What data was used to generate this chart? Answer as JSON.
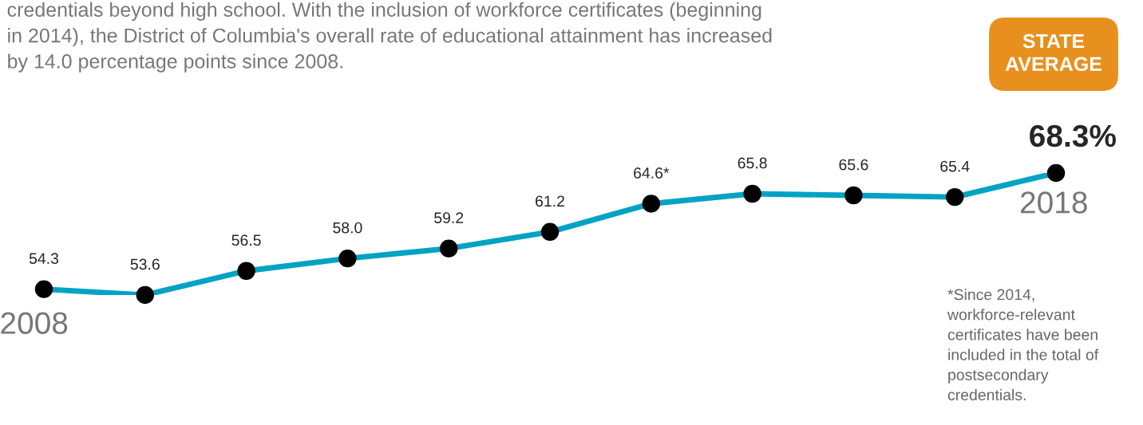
{
  "chart_data": {
    "type": "line",
    "subtitle": "credentials beyond high school. With the inclusion of workforce certificates (beginning in 2014), the District of Columbia's overall rate of educational attainment has increased by 14.0 percentage points since 2008.",
    "categories": [
      "2008",
      null,
      null,
      null,
      null,
      null,
      null,
      null,
      null,
      null,
      "2018"
    ],
    "series": [
      {
        "color": "#00a3c4",
        "values": [
          54.3,
          53.6,
          56.5,
          58.0,
          59.2,
          61.2,
          64.6,
          65.8,
          65.6,
          65.4,
          68.3
        ],
        "value_labels": [
          "54.3",
          "53.6",
          "56.5",
          "58.0",
          "59.2",
          "61.2",
          "64.6*",
          "65.8",
          "65.6",
          "65.4",
          "68.3%"
        ]
      }
    ],
    "marker": "circle",
    "annotations": [
      "STATE AVERAGE",
      "*Since 2014, workforce-relevant certificates have been included in the total of postsecondary credentials."
    ],
    "legend": false
  }
}
